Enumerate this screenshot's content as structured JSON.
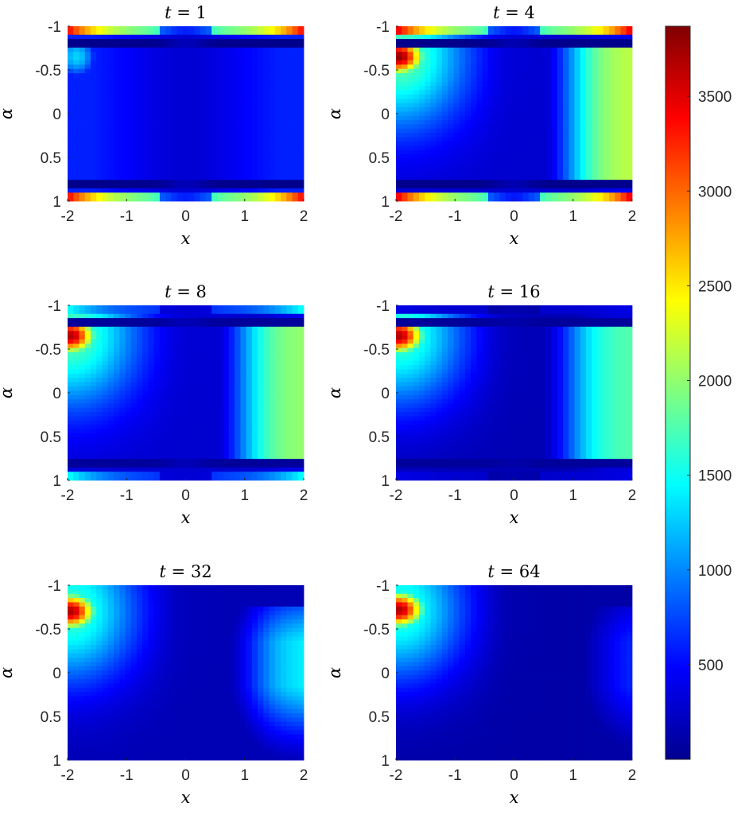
{
  "chart_data": {
    "type": "heatmap",
    "colormap": "jet",
    "color_range": [
      0,
      3870
    ],
    "colorbar": {
      "ticks": [
        500,
        1000,
        1500,
        2000,
        2500,
        3000,
        3500
      ]
    },
    "x_axis": {
      "label": "x",
      "range": [
        -2,
        2
      ],
      "ticks": [
        -2,
        -1,
        0,
        1,
        2
      ],
      "tick_labels": [
        "-2",
        "-1",
        "0",
        "1",
        "2"
      ]
    },
    "y_axis": {
      "label": "α",
      "range": [
        -1,
        1
      ],
      "reversed": true,
      "ticks": [
        -1,
        -0.5,
        0,
        0.5,
        1
      ],
      "tick_labels": [
        "-1",
        "-0.5",
        "0",
        "0.5",
        "1"
      ]
    },
    "panels": [
      {
        "t": "1",
        "title_var": "t",
        "title_eq": " = ",
        "title_val": "1",
        "regions": {
          "edge_band": {
            "alpha_from_edge": 0.9,
            "value_center": 1800,
            "value_corners": 3400
          },
          "dark_line": {
            "alpha_abs": 0.8,
            "value": 50
          },
          "interior_peak": {
            "x": -1.85,
            "alpha": -0.65,
            "value": 1300
          },
          "interior_base": 600,
          "center_trough_value": 350
        }
      },
      {
        "t": "4",
        "title_var": "t",
        "title_eq": " = ",
        "title_val": "4",
        "regions": {
          "edge_band": {
            "alpha_from_edge": 0.9,
            "value_center": 1800,
            "value_corners": 3500
          },
          "dark_line": {
            "alpha_abs": 0.8,
            "value": 50
          },
          "hotspot": {
            "x": -1.95,
            "alpha": -0.65,
            "value": 3800
          },
          "right_plateau": {
            "x_from": 1.0,
            "value": 2200
          },
          "center_trough_value": 300
        }
      },
      {
        "t": "8",
        "title_var": "t",
        "title_eq": " = ",
        "title_val": "8",
        "regions": {
          "edge_band": {
            "alpha_from_edge": 0.9,
            "value_center": 700,
            "value_corners": 1500
          },
          "dark_line": {
            "alpha_abs": 0.8,
            "value": 100
          },
          "hotspot": {
            "x": -1.95,
            "alpha": -0.65,
            "value": 3700
          },
          "right_plateau": {
            "x_from": 1.0,
            "value": 2050
          },
          "center_trough_value": 300
        }
      },
      {
        "t": "16",
        "title_var": "t",
        "title_eq": " = ",
        "title_val": "16",
        "regions": {
          "edge_band": {
            "alpha_from_edge": 0.9,
            "value_center": 300,
            "value_corners": 400
          },
          "dark_line": {
            "alpha_abs": 0.8,
            "value": 100
          },
          "hotspot": {
            "x": -1.95,
            "alpha": -0.65,
            "value": 3700
          },
          "right_plateau": {
            "x_from": 1.0,
            "value": 1800
          },
          "center_trough_value": 200
        }
      },
      {
        "t": "32",
        "title_var": "t",
        "title_eq": " = ",
        "title_val": "32",
        "regions": {
          "hotspot": {
            "x": -1.95,
            "alpha": -0.7,
            "value": 3700
          },
          "right_plateau": {
            "x_from": 1.2,
            "value": 1450
          },
          "center_trough_value": 200
        }
      },
      {
        "t": "64",
        "title_var": "t",
        "title_eq": " = ",
        "title_val": "64",
        "regions": {
          "hotspot": {
            "x": -1.95,
            "alpha": -0.72,
            "value": 3700
          },
          "right_plateau": {
            "x_from": 1.5,
            "value": 700
          },
          "center_trough_value": 150
        }
      }
    ]
  }
}
